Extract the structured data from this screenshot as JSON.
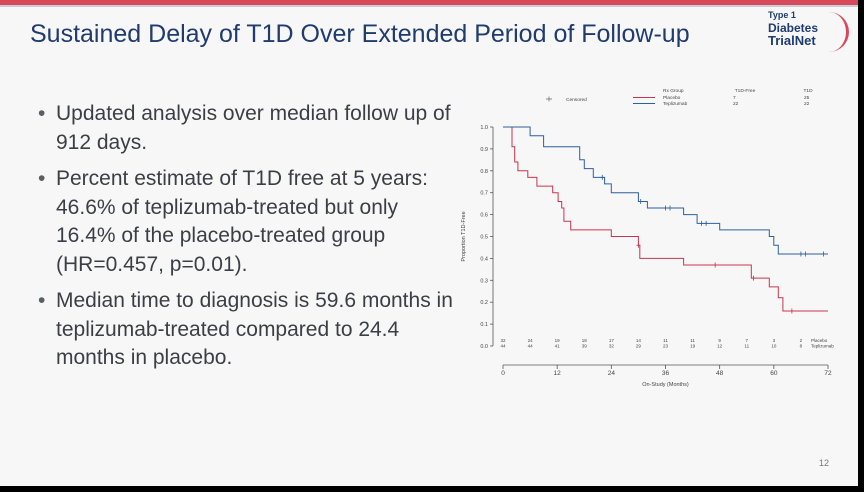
{
  "slide": {
    "title": "Sustained Delay of T1D Over Extended Period of Follow-up",
    "page_number": "12",
    "logo": {
      "line1": "Type 1",
      "line2": "Diabetes",
      "line3": "TrialNet"
    },
    "bullets": [
      "Updated analysis over median follow up of 912 days.",
      "Percent estimate of T1D free at 5 years: 46.6% of teplizumab-treated but only 16.4% of the placebo-treated group (HR=0.457, p=0.01).",
      "Median time to diagnosis is 59.6 months in teplizumab-treated compared to 24.4 months in placebo."
    ]
  },
  "chart_data": {
    "type": "line",
    "subtype": "kaplan-meier",
    "xlabel": "On-Study (Months)",
    "ylabel": "Proportion T1D-Free",
    "xlim": [
      0,
      72
    ],
    "ylim": [
      0,
      1
    ],
    "x_ticks": [
      0,
      12,
      24,
      36,
      48,
      60,
      72
    ],
    "y_ticks": [
      0.0,
      0.1,
      0.2,
      0.3,
      0.4,
      0.5,
      0.6,
      0.7,
      0.8,
      0.9,
      1.0
    ],
    "legend": {
      "position": "top-right",
      "header": [
        "Rx Group",
        "T1D-Free",
        "T1D"
      ],
      "censored_label": "Censored",
      "rows": [
        {
          "name": "Placebo",
          "t1d_free": "7",
          "t1d": "25"
        },
        {
          "name": "Teplizumab",
          "t1d_free": "22",
          "t1d": "22"
        }
      ]
    },
    "series": [
      {
        "name": "Placebo",
        "color": "#c8344f",
        "points": [
          [
            0,
            1.0
          ],
          [
            2,
            1.0
          ],
          [
            2,
            0.91
          ],
          [
            2.6,
            0.91
          ],
          [
            2.6,
            0.84
          ],
          [
            3.3,
            0.84
          ],
          [
            3.3,
            0.8
          ],
          [
            5.5,
            0.8
          ],
          [
            5.5,
            0.77
          ],
          [
            7.5,
            0.77
          ],
          [
            7.5,
            0.73
          ],
          [
            11,
            0.73
          ],
          [
            11,
            0.7
          ],
          [
            12.2,
            0.7
          ],
          [
            12.2,
            0.66
          ],
          [
            13,
            0.66
          ],
          [
            13,
            0.63
          ],
          [
            13.5,
            0.63
          ],
          [
            13.5,
            0.57
          ],
          [
            15,
            0.57
          ],
          [
            15,
            0.53
          ],
          [
            24,
            0.53
          ],
          [
            24,
            0.5
          ],
          [
            30,
            0.5
          ],
          [
            30,
            0.46
          ],
          [
            30.3,
            0.46
          ],
          [
            30.3,
            0.4
          ],
          [
            40,
            0.4
          ],
          [
            40,
            0.37
          ],
          [
            55,
            0.37
          ],
          [
            55,
            0.31
          ],
          [
            59,
            0.31
          ],
          [
            59,
            0.27
          ],
          [
            61,
            0.27
          ],
          [
            61,
            0.22
          ],
          [
            62,
            0.22
          ],
          [
            62,
            0.16
          ],
          [
            72,
            0.16
          ]
        ],
        "censored": [
          [
            30,
            0.46
          ],
          [
            47,
            0.37
          ],
          [
            55.5,
            0.31
          ],
          [
            64,
            0.16
          ]
        ]
      },
      {
        "name": "Teplizumab",
        "color": "#2f5f9f",
        "points": [
          [
            0,
            1.0
          ],
          [
            6,
            1.0
          ],
          [
            6,
            0.96
          ],
          [
            9,
            0.96
          ],
          [
            9,
            0.91
          ],
          [
            17,
            0.91
          ],
          [
            17,
            0.85
          ],
          [
            18,
            0.85
          ],
          [
            18,
            0.81
          ],
          [
            20,
            0.81
          ],
          [
            20,
            0.77
          ],
          [
            22.5,
            0.77
          ],
          [
            22.5,
            0.74
          ],
          [
            24,
            0.74
          ],
          [
            24,
            0.7
          ],
          [
            30,
            0.7
          ],
          [
            30,
            0.66
          ],
          [
            32,
            0.66
          ],
          [
            32,
            0.63
          ],
          [
            40,
            0.63
          ],
          [
            40,
            0.6
          ],
          [
            43,
            0.6
          ],
          [
            43,
            0.56
          ],
          [
            48,
            0.56
          ],
          [
            48,
            0.53
          ],
          [
            59,
            0.53
          ],
          [
            59,
            0.5
          ],
          [
            60,
            0.5
          ],
          [
            60,
            0.46
          ],
          [
            61,
            0.46
          ],
          [
            61,
            0.42
          ],
          [
            72,
            0.42
          ]
        ],
        "censored": [
          [
            22,
            0.77
          ],
          [
            30.5,
            0.66
          ],
          [
            36,
            0.63
          ],
          [
            37,
            0.63
          ],
          [
            44,
            0.56
          ],
          [
            45,
            0.56
          ],
          [
            66,
            0.42
          ],
          [
            67,
            0.42
          ],
          [
            71,
            0.42
          ]
        ]
      }
    ],
    "at_risk": {
      "times": [
        0,
        6,
        12,
        18,
        24,
        30,
        36,
        42,
        48,
        54,
        60,
        66
      ],
      "rows": [
        {
          "name": "Placebo",
          "values": [
            "32",
            "24",
            "19",
            "18",
            "17",
            "14",
            "11",
            "11",
            "9",
            "7",
            "3",
            "2"
          ]
        },
        {
          "name": "Teplizumab",
          "values": [
            "44",
            "44",
            "41",
            "39",
            "32",
            "29",
            "23",
            "19",
            "12",
            "11",
            "10",
            "8"
          ]
        }
      ]
    }
  }
}
